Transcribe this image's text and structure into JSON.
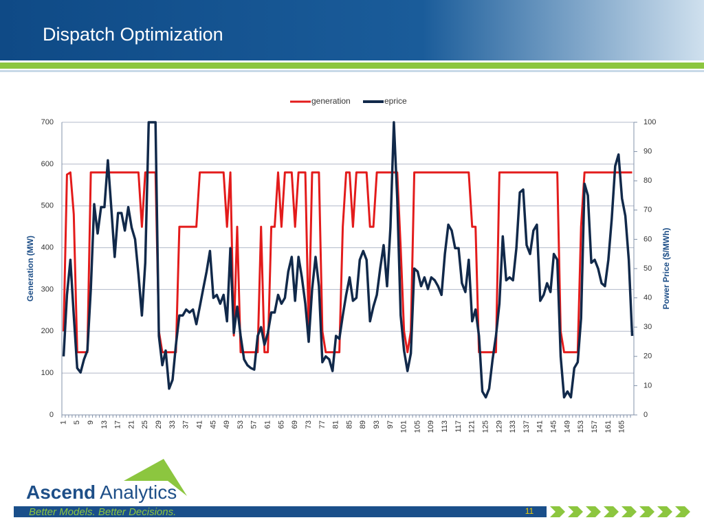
{
  "slide": {
    "title": "Dispatch Optimization",
    "brand_bold": "Ascend",
    "brand_rest": "Analytics",
    "tagline": "Better Models. Better Decisions.",
    "page_number": "11"
  },
  "chart_data": {
    "type": "line",
    "categories": [
      "1",
      null,
      null,
      null,
      "5",
      null,
      null,
      null,
      "9",
      null,
      null,
      null,
      "13",
      null,
      null,
      null,
      "17",
      null,
      null,
      null,
      "21",
      null,
      null,
      null,
      "25",
      null,
      null,
      null,
      "29",
      null,
      null,
      null,
      "33",
      null,
      null,
      null,
      "37",
      null,
      null,
      null,
      "41",
      null,
      null,
      null,
      "45",
      null,
      null,
      null,
      "49",
      null,
      null,
      null,
      "53",
      null,
      null,
      null,
      "57",
      null,
      null,
      null,
      "61",
      null,
      null,
      null,
      "65",
      null,
      null,
      null,
      "69",
      null,
      null,
      null,
      "73",
      null,
      null,
      null,
      "77",
      null,
      null,
      null,
      "81",
      null,
      null,
      null,
      "85",
      null,
      null,
      null,
      "89",
      null,
      null,
      null,
      "93",
      null,
      null,
      null,
      "97",
      null,
      null,
      null,
      "101",
      null,
      null,
      null,
      "105",
      null,
      null,
      null,
      "109",
      null,
      null,
      null,
      "113",
      null,
      null,
      null,
      "117",
      null,
      null,
      null,
      "121",
      null,
      null,
      null,
      "125",
      null,
      null,
      null,
      "129",
      null,
      null,
      null,
      "133",
      null,
      null,
      null,
      "137",
      null,
      null,
      null,
      "141",
      null,
      null,
      null,
      "145",
      null,
      null,
      null,
      "149",
      null,
      null,
      null,
      "153",
      null,
      null,
      null,
      "157",
      null,
      null,
      null,
      "161",
      null,
      null,
      null,
      "165",
      null,
      null,
      null
    ],
    "series": [
      {
        "name": "generation",
        "color": "#e31b1b",
        "axis": "y",
        "values": [
          200,
          575,
          580,
          480,
          150,
          150,
          150,
          150,
          580,
          580,
          580,
          580,
          580,
          580,
          580,
          580,
          580,
          580,
          580,
          580,
          580,
          580,
          580,
          450,
          580,
          580,
          580,
          580,
          200,
          150,
          150,
          150,
          150,
          150,
          450,
          450,
          450,
          450,
          450,
          450,
          580,
          580,
          580,
          580,
          580,
          580,
          580,
          580,
          450,
          580,
          190,
          450,
          150,
          150,
          150,
          150,
          150,
          150,
          450,
          150,
          150,
          450,
          450,
          580,
          450,
          580,
          580,
          580,
          450,
          580,
          580,
          580,
          200,
          580,
          580,
          580,
          200,
          150,
          150,
          150,
          150,
          150,
          450,
          580,
          580,
          450,
          580,
          580,
          580,
          580,
          450,
          450,
          580,
          580,
          580,
          580,
          580,
          580,
          580,
          400,
          200,
          150,
          200,
          580,
          580,
          580,
          580,
          580,
          580,
          580,
          580,
          580,
          580,
          580,
          580,
          580,
          580,
          580,
          580,
          580,
          450,
          450,
          150,
          150,
          150,
          150,
          150,
          150,
          580,
          580,
          580,
          580,
          580,
          580,
          580,
          580,
          580,
          580,
          580,
          580,
          580,
          580,
          580,
          580,
          580,
          580,
          200,
          150,
          150,
          150,
          150,
          150,
          450,
          580,
          580,
          580,
          580,
          580,
          580,
          580,
          580,
          580,
          580,
          580,
          580,
          580,
          580,
          580
        ]
      },
      {
        "name": "eprice",
        "color": "#11294a",
        "axis": "y2",
        "values": [
          20,
          41,
          53,
          34,
          16,
          14.5,
          19,
          22,
          43,
          72,
          62,
          71,
          71,
          87,
          71,
          54,
          69,
          69,
          63,
          71,
          64,
          60,
          48,
          34,
          52,
          100,
          100,
          100,
          27,
          17,
          22,
          9,
          12,
          24,
          34,
          34,
          36,
          35,
          36,
          31,
          37,
          43,
          49,
          56,
          40,
          41,
          38,
          41,
          32,
          57,
          28,
          37,
          27,
          19,
          17,
          16,
          15.5,
          27,
          30,
          24,
          28,
          35,
          35,
          41,
          38,
          40,
          49,
          54,
          39,
          54,
          47,
          38,
          25,
          43,
          54,
          44,
          18,
          20,
          19,
          15,
          27,
          26,
          34,
          41,
          47,
          39,
          40,
          53,
          56,
          53,
          32,
          37,
          41,
          50,
          58,
          44,
          64,
          100,
          74,
          34,
          22,
          15,
          21,
          50,
          49,
          44,
          47,
          43,
          47,
          46,
          44,
          41,
          55,
          65,
          63,
          57,
          57,
          45,
          42,
          53,
          32,
          36,
          27,
          8,
          6,
          9,
          19,
          27,
          38,
          61,
          46,
          47,
          46,
          57,
          76,
          77,
          58,
          55,
          63,
          65,
          39,
          41,
          45,
          42,
          55,
          53,
          20,
          6,
          8,
          6,
          16,
          18,
          33,
          79,
          75,
          52,
          53,
          50,
          45,
          44,
          53,
          67,
          85,
          89,
          74,
          68,
          53,
          27
        ]
      }
    ],
    "ylabel": "Generation (MW)",
    "y2label": "Power Price ($/MWh)",
    "ylim": [
      0,
      700
    ],
    "yticks": [
      0,
      100,
      200,
      300,
      400,
      500,
      600,
      700
    ],
    "y2lim": [
      0,
      100
    ],
    "y2ticks": [
      0,
      10,
      20,
      30,
      40,
      50,
      60,
      70,
      80,
      90,
      100
    ],
    "grid": true,
    "legend": "top"
  }
}
